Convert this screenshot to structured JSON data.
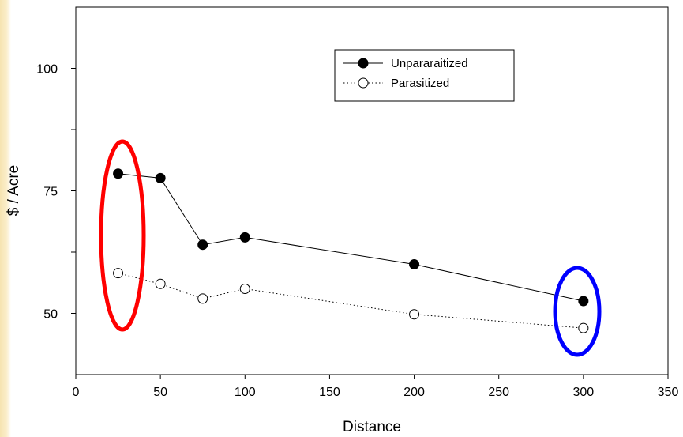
{
  "chart_data": {
    "type": "line",
    "xlabel": "Distance",
    "ylabel": "$ / Acre",
    "xlim": [
      0,
      350
    ],
    "ylim": [
      37.5,
      112.5
    ],
    "x_ticks": [
      0,
      50,
      100,
      150,
      200,
      250,
      300,
      350
    ],
    "y_ticks_labeled": [
      50,
      75,
      100
    ],
    "y_ticks_minor": [
      62.5,
      87.5
    ],
    "grid": false,
    "legend_position": "top-right",
    "series": [
      {
        "name": "Unpararaitized",
        "marker": "filled-circle",
        "line_style": "solid",
        "x": [
          25,
          50,
          75,
          100,
          200,
          300
        ],
        "y": [
          78.5,
          77.6,
          64,
          65.5,
          60,
          52.5
        ]
      },
      {
        "name": "Parasitized",
        "marker": "open-circle",
        "line_style": "dotted",
        "x": [
          25,
          50,
          75,
          100,
          200,
          300
        ],
        "y": [
          58.2,
          56,
          53,
          55,
          49.8,
          47
        ]
      }
    ],
    "annotations": [
      {
        "shape": "ellipse",
        "color": "#ff0000",
        "around_x": 25
      },
      {
        "shape": "ellipse",
        "color": "#0000ff",
        "around_x": 300
      }
    ]
  }
}
